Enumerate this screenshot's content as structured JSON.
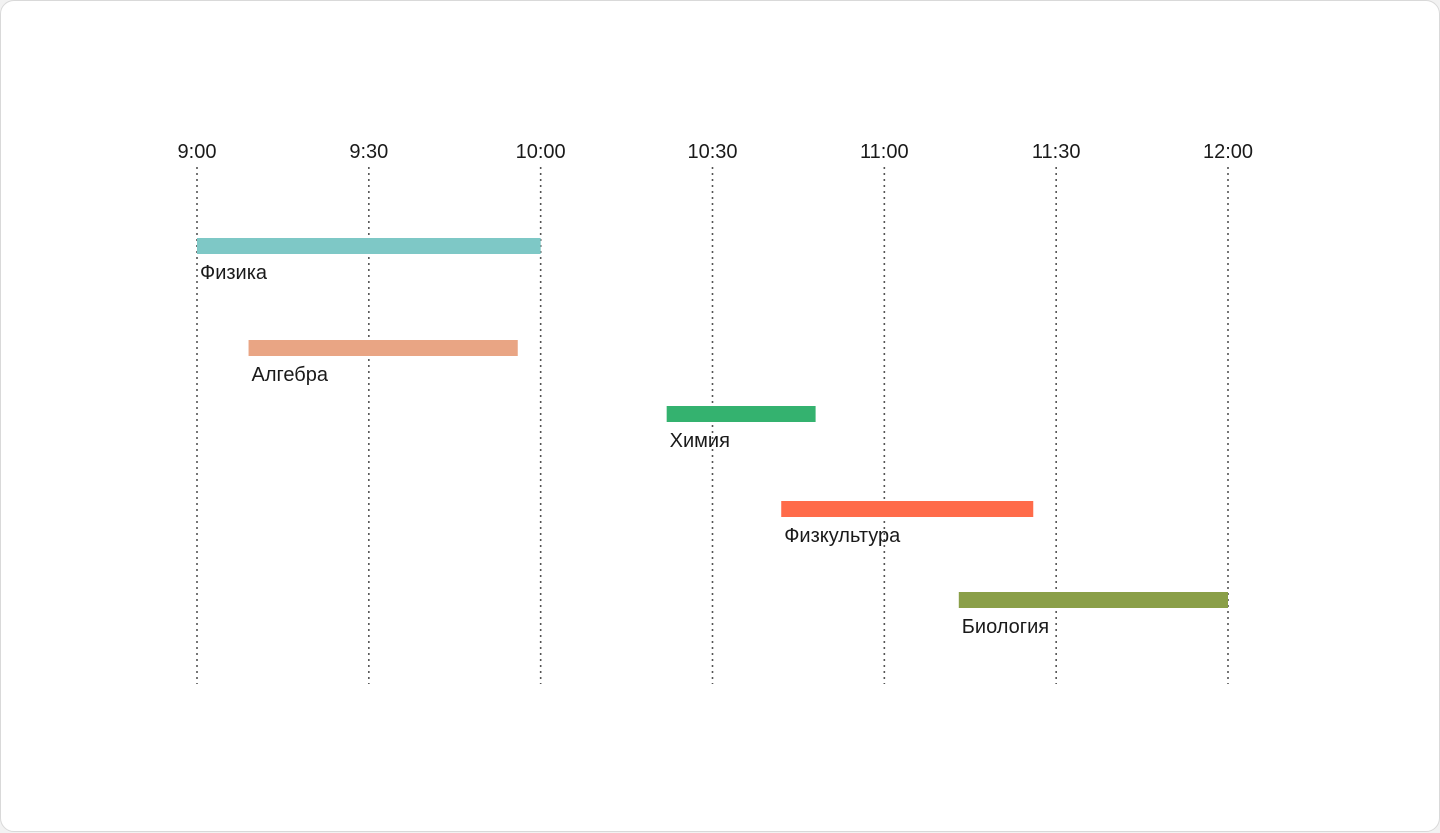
{
  "chart_data": {
    "type": "gantt",
    "title": "",
    "xlabel": "",
    "ylabel": "",
    "x_ticks": [
      "9:00",
      "9:30",
      "10:00",
      "10:30",
      "11:00",
      "11:30",
      "12:00"
    ],
    "x_range": [
      "9:00",
      "12:00"
    ],
    "grid": true,
    "tasks": [
      {
        "name": "Физика",
        "start": "9:00",
        "end": "10:00",
        "color": "#7ec8c6"
      },
      {
        "name": "Алгебра",
        "start": "9:09",
        "end": "9:56",
        "color": "#e9a584"
      },
      {
        "name": "Химия",
        "start": "10:22",
        "end": "10:48",
        "color": "#34b26f"
      },
      {
        "name": "Физкультура",
        "start": "10:42",
        "end": "11:26",
        "color": "#ff6b4a"
      },
      {
        "name": "Биология",
        "start": "11:13",
        "end": "12:00",
        "color": "#8a9f48"
      }
    ]
  }
}
